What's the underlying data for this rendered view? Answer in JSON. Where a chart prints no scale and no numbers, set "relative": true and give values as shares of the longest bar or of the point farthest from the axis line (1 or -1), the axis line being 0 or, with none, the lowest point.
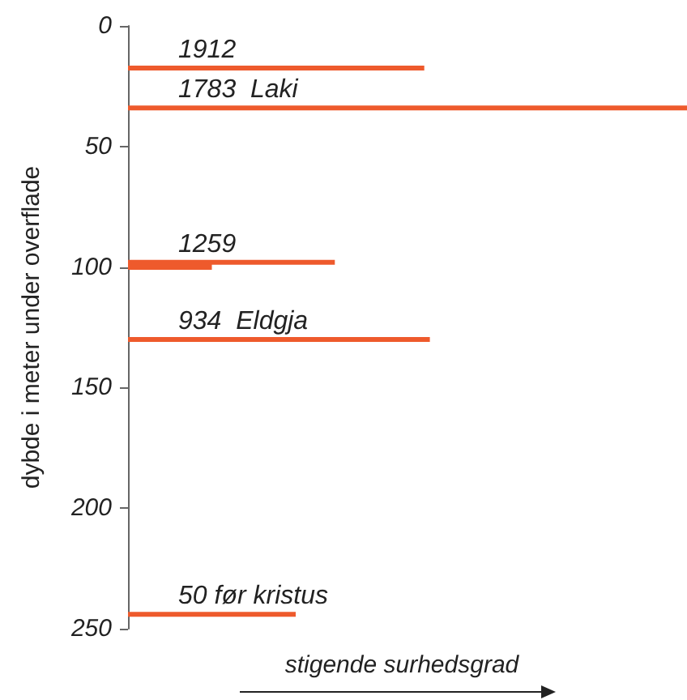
{
  "chart_data": {
    "type": "bar",
    "orientation": "horizontal",
    "relative": true,
    "ylabel": "dybde i meter under overflade",
    "xlabel": "stigende surhedsgrad",
    "ylim": [
      250,
      0
    ],
    "yticks": [
      0,
      50,
      100,
      150,
      200,
      250
    ],
    "grid": false,
    "annotations": [
      {
        "text": "1912",
        "y": 17.5
      },
      {
        "text": "1783  Laki",
        "y": 34
      },
      {
        "text": "1259",
        "y": 98
      },
      {
        "text": "934  Eldgja",
        "y": 130
      },
      {
        "text": "50 før kristus",
        "y": 244
      }
    ],
    "series": [
      {
        "color": "#ee5a2c",
        "x": [
          17.5,
          34,
          98,
          130,
          244
        ],
        "values": [
          0.53,
          1,
          0.37,
          0.54,
          0.3
        ]
      },
      {
        "color": "#ee5a2c",
        "x": [
          99.5
        ],
        "values": [
          0.15
        ]
      }
    ]
  }
}
